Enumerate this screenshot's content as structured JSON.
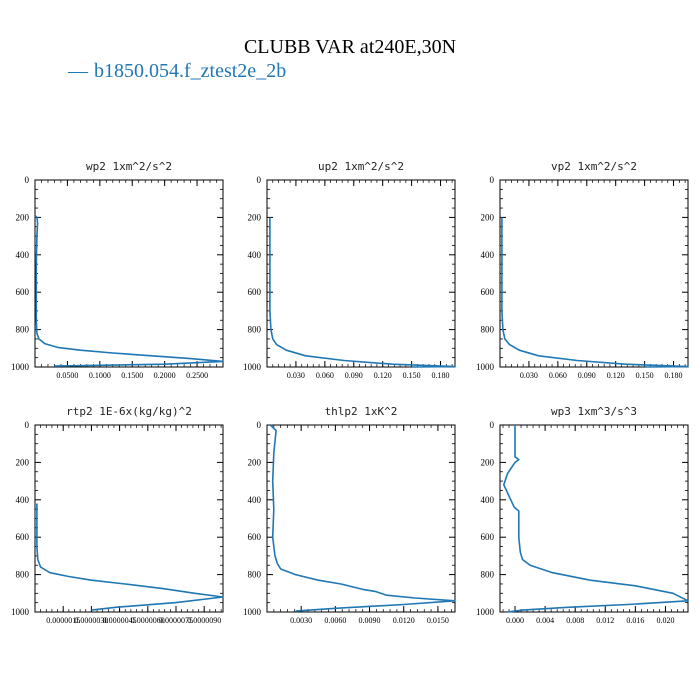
{
  "figure": {
    "title": "CLUBB VAR at240E,30N",
    "legend_label": "b1850.054.f_ztest2e_2b",
    "line_color": "#1f77b4"
  },
  "chart_data": [
    {
      "type": "line",
      "title": "wp2   1xm^2/s^2",
      "xlim": [
        0,
        0.29
      ],
      "ylim": [
        1000,
        0
      ],
      "yticks": [
        0,
        200,
        400,
        600,
        800,
        1000
      ],
      "xtick_values": [
        0.05,
        0.1,
        0.15,
        0.2,
        0.25
      ],
      "xtick_labels": [
        "0.0500",
        "0.1000",
        "0.1500",
        "0.2000",
        "0.2500"
      ],
      "x": [
        0.0,
        0.003,
        0.004,
        0.003,
        0.002,
        0.002,
        0.002,
        0.003,
        0.006,
        0.015,
        0.035,
        0.07,
        0.12,
        0.18,
        0.24,
        0.29,
        0.2,
        0.03
      ],
      "y": [
        190,
        200,
        230,
        300,
        450,
        600,
        750,
        820,
        850,
        875,
        895,
        910,
        925,
        940,
        955,
        970,
        985,
        995
      ]
    },
    {
      "type": "line",
      "title": "up2   1xm^2/s^2",
      "xlim": [
        0,
        0.195
      ],
      "ylim": [
        1000,
        0
      ],
      "yticks": [
        0,
        200,
        400,
        600,
        800,
        1000
      ],
      "xtick_values": [
        0.03,
        0.06,
        0.09,
        0.12,
        0.15,
        0.18
      ],
      "xtick_labels": [
        "0.030",
        "0.060",
        "0.090",
        "0.120",
        "0.150",
        "0.180"
      ],
      "x": [
        0.003,
        0.003,
        0.003,
        0.003,
        0.004,
        0.006,
        0.01,
        0.02,
        0.04,
        0.08,
        0.13,
        0.195,
        0.15
      ],
      "y": [
        200,
        300,
        500,
        700,
        800,
        850,
        880,
        910,
        940,
        965,
        985,
        998,
        1000
      ]
    },
    {
      "type": "line",
      "title": "vp2   1xm^2/s^2",
      "xlim": [
        0,
        0.195
      ],
      "ylim": [
        1000,
        0
      ],
      "yticks": [
        0,
        200,
        400,
        600,
        800,
        1000
      ],
      "xtick_values": [
        0.03,
        0.06,
        0.09,
        0.12,
        0.15,
        0.18
      ],
      "xtick_labels": [
        "0.030",
        "0.060",
        "0.090",
        "0.120",
        "0.150",
        "0.180"
      ],
      "x": [
        0.002,
        0.002,
        0.002,
        0.002,
        0.003,
        0.005,
        0.01,
        0.02,
        0.04,
        0.08,
        0.13,
        0.195,
        0.15
      ],
      "y": [
        200,
        300,
        500,
        700,
        800,
        850,
        880,
        910,
        940,
        965,
        985,
        998,
        1000
      ]
    },
    {
      "type": "line",
      "title": "rtp2   1E-6x(kg/kg)^2",
      "xlim": [
        0,
        1e-05
      ],
      "ylim": [
        1000,
        0
      ],
      "yticks": [
        0,
        200,
        400,
        600,
        800,
        1000
      ],
      "xtick_values": [
        1.5e-06,
        3e-06,
        4.5e-06,
        6e-06,
        7.5e-06,
        9e-06
      ],
      "xtick_labels": [
        "0.0000015",
        "0.0000030",
        "0.0000045",
        "0.0000060",
        "0.0000075",
        "0.0000090"
      ],
      "x": [
        1e-07,
        1e-07,
        1e-07,
        1.5e-07,
        3e-07,
        8e-07,
        1.8e-06,
        3e-06,
        4.8e-06,
        6.8e-06,
        8.5e-06,
        1e-05,
        7.5e-06,
        4.3e-06,
        3e-06
      ],
      "y": [
        420,
        500,
        650,
        720,
        760,
        790,
        810,
        830,
        850,
        875,
        900,
        920,
        950,
        975,
        990
      ]
    },
    {
      "type": "line",
      "title": "thlp2   1xK^2",
      "xlim": [
        0,
        0.0165
      ],
      "ylim": [
        1000,
        0
      ],
      "yticks": [
        0,
        200,
        400,
        600,
        800,
        1000
      ],
      "xtick_values": [
        0.003,
        0.006,
        0.009,
        0.012,
        0.015
      ],
      "xtick_labels": [
        "0.0030",
        "0.0060",
        "0.0090",
        "0.0120",
        "0.0150"
      ],
      "x": [
        0.0003,
        0.0008,
        0.0006,
        0.0005,
        0.0006,
        0.0005,
        0.0007,
        0.0009,
        0.0012,
        0.0025,
        0.0045,
        0.0065,
        0.0085,
        0.0095,
        0.0105,
        0.013,
        0.0165,
        0.012,
        0.006,
        0.0025
      ],
      "y": [
        0,
        30,
        150,
        300,
        450,
        600,
        700,
        740,
        770,
        800,
        830,
        850,
        880,
        890,
        910,
        925,
        940,
        960,
        980,
        995
      ]
    },
    {
      "type": "line",
      "title": "wp3   1xm^3/s^3",
      "xlim": [
        -0.002,
        0.023
      ],
      "ylim": [
        1000,
        0
      ],
      "yticks": [
        0,
        200,
        400,
        600,
        800,
        1000
      ],
      "xtick_values": [
        0.0,
        0.004,
        0.008,
        0.012,
        0.016,
        0.02
      ],
      "xtick_labels": [
        "0.000",
        "0.004",
        "0.008",
        "0.012",
        "0.016",
        "0.020"
      ],
      "x": [
        0.0,
        0.0,
        0.0,
        0.0,
        0.0005,
        0.0,
        -0.001,
        -0.0015,
        -0.0008,
        -0.0001,
        0.0005,
        0.0005,
        0.0005,
        0.0007,
        0.001,
        0.002,
        0.005,
        0.01,
        0.016,
        0.021,
        0.023,
        0.015,
        0.007,
        0.001,
        -0.001
      ],
      "y": [
        0,
        50,
        100,
        170,
        185,
        200,
        260,
        320,
        380,
        440,
        460,
        520,
        600,
        680,
        720,
        750,
        790,
        830,
        860,
        900,
        940,
        960,
        975,
        990,
        1000
      ]
    }
  ]
}
